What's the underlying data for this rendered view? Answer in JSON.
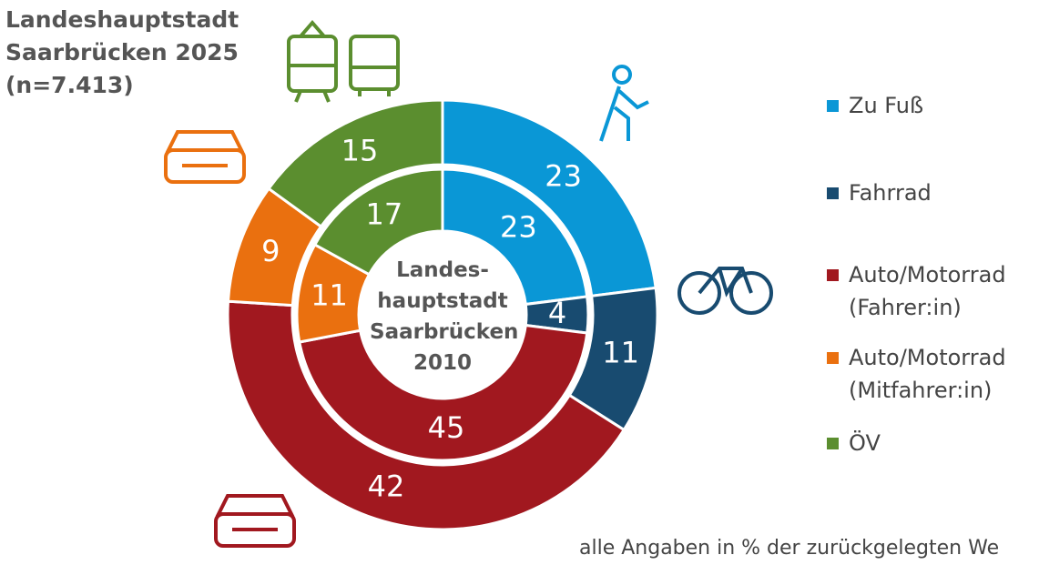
{
  "chart_data": {
    "type": "donut",
    "title": "Landeshauptstadt Saarbrücken 2025 (n=7.413)",
    "inner_label": "Landes-hauptstadt Saarbrücken 2010",
    "categories": [
      "Zu Fuß",
      "Fahrrad",
      "Auto/Motorrad (Fahrer:in)",
      "Auto/Motorrad (Mitfahrer:in)",
      "ÖV"
    ],
    "colors": [
      "#0a97d6",
      "#184b70",
      "#a1181f",
      "#ea700f",
      "#5b8e2f"
    ],
    "series": [
      {
        "values": [
          23,
          11,
          42,
          9,
          15
        ]
      },
      {
        "values": [
          23,
          4,
          45,
          11,
          17
        ]
      }
    ],
    "footnote": "alle Angaben in % der zurückgelegten We"
  }
}
